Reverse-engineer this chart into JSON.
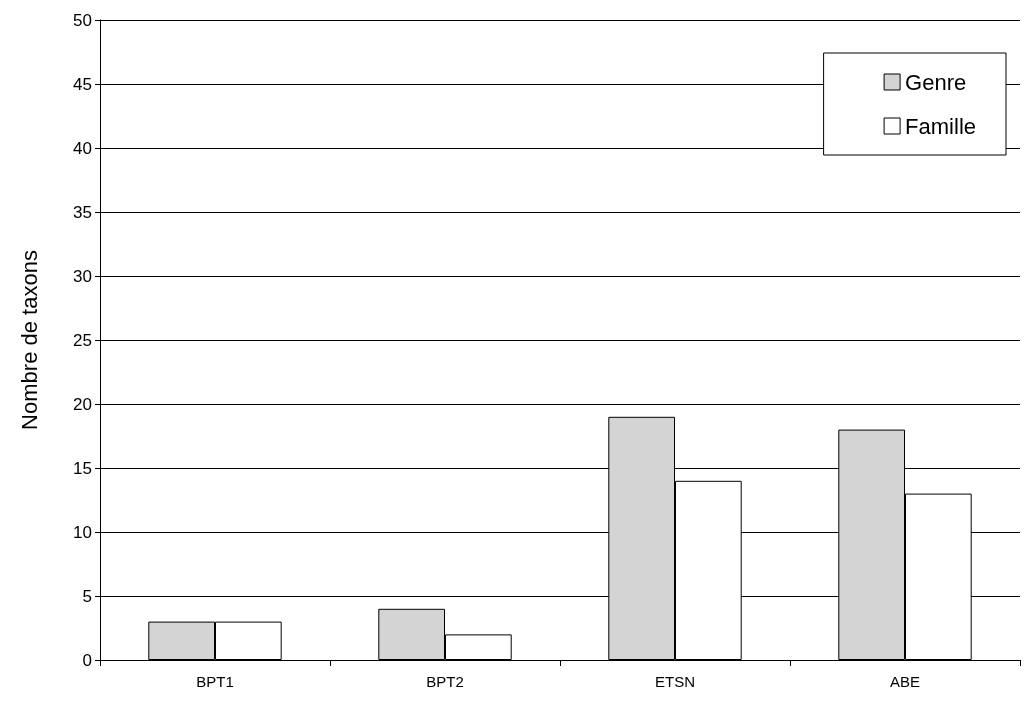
{
  "chart_data": {
    "type": "bar",
    "ylabel": "Nombre de taxons",
    "categories": [
      "BPT1",
      "BPT2",
      "ETSN",
      "ABE"
    ],
    "series": [
      {
        "name": "Genre",
        "color": "#d4d4d4",
        "values": [
          3,
          4,
          19,
          18
        ]
      },
      {
        "name": "Famille",
        "color": "#ffffff",
        "values": [
          3,
          2,
          14,
          13
        ]
      }
    ],
    "ylim": [
      0,
      50
    ],
    "yticks": [
      0,
      5,
      10,
      15,
      20,
      25,
      30,
      35,
      40,
      45,
      50
    ],
    "grid": "y",
    "legend": "top right"
  }
}
